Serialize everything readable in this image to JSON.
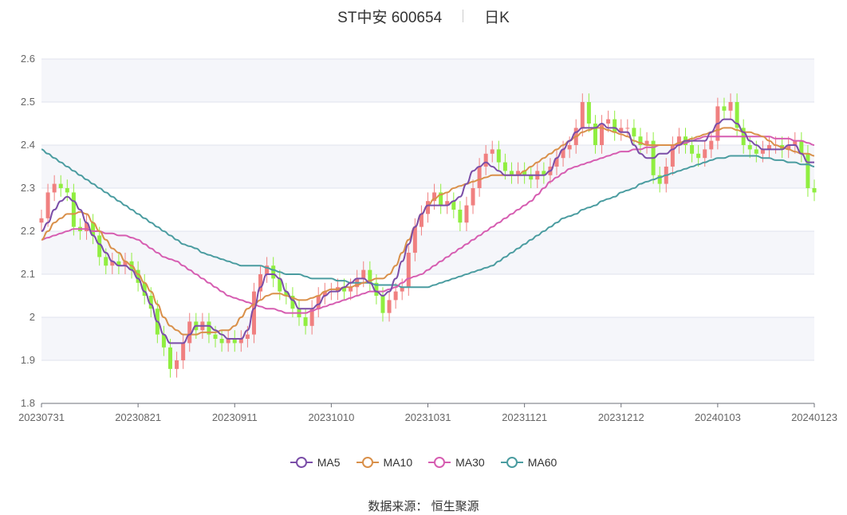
{
  "header": {
    "stock": "ST中安 600654",
    "period": "日K"
  },
  "source": "数据来源：  恒生聚源",
  "colors": {
    "up": "#f08080",
    "down": "#90ee40",
    "ma5": "#7b4ea8",
    "ma10": "#d9904a",
    "ma30": "#d65db1",
    "ma60": "#4a9ca0"
  },
  "chart_data": {
    "type": "candlestick",
    "ylim": [
      1.8,
      2.6
    ],
    "yticks": [
      "1.8",
      "1.9",
      "2",
      "2.1",
      "2.2",
      "2.3",
      "2.4",
      "2.5",
      "2.6"
    ],
    "xticks": [
      {
        "label": "20230731",
        "index": 0
      },
      {
        "label": "20230821",
        "index": 15
      },
      {
        "label": "20230911",
        "index": 30
      },
      {
        "label": "20231010",
        "index": 45
      },
      {
        "label": "20231031",
        "index": 60
      },
      {
        "label": "20231121",
        "index": 75
      },
      {
        "label": "20231212",
        "index": 90
      },
      {
        "label": "20240103",
        "index": 105
      },
      {
        "label": "20240123",
        "index": 120
      }
    ],
    "legend": [
      "MA5",
      "MA10",
      "MA30",
      "MA60"
    ],
    "close": [
      2.23,
      2.29,
      2.31,
      2.3,
      2.29,
      2.21,
      2.2,
      2.22,
      2.19,
      2.14,
      2.12,
      2.13,
      2.12,
      2.13,
      2.11,
      2.08,
      2.05,
      2.02,
      1.96,
      1.93,
      1.88,
      1.9,
      1.94,
      1.99,
      1.97,
      1.99,
      1.96,
      1.95,
      1.94,
      1.95,
      1.94,
      1.95,
      1.96,
      2.06,
      2.1,
      2.12,
      2.09,
      2.06,
      2.05,
      2.02,
      2.0,
      1.98,
      2.02,
      2.05,
      2.06,
      2.06,
      2.07,
      2.06,
      2.07,
      2.09,
      2.11,
      2.08,
      2.05,
      2.01,
      2.04,
      2.06,
      2.07,
      2.15,
      2.21,
      2.24,
      2.27,
      2.29,
      2.26,
      2.27,
      2.25,
      2.22,
      2.26,
      2.3,
      2.35,
      2.38,
      2.39,
      2.36,
      2.34,
      2.33,
      2.34,
      2.33,
      2.32,
      2.34,
      2.33,
      2.35,
      2.37,
      2.39,
      2.4,
      2.44,
      2.5,
      2.45,
      2.4,
      2.45,
      2.46,
      2.43,
      2.44,
      2.44,
      2.42,
      2.4,
      2.41,
      2.33,
      2.31,
      2.35,
      2.4,
      2.42,
      2.4,
      2.38,
      2.37,
      2.39,
      2.41,
      2.49,
      2.48,
      2.5,
      2.44,
      2.4,
      2.39,
      2.38,
      2.39,
      2.4,
      2.4,
      2.39,
      2.4,
      2.41,
      2.38,
      2.3,
      2.29
    ],
    "ma5": [
      2.2,
      2.22,
      2.25,
      2.27,
      2.28,
      2.27,
      2.25,
      2.22,
      2.19,
      2.17,
      2.15,
      2.13,
      2.12,
      2.12,
      2.11,
      2.09,
      2.06,
      2.03,
      1.99,
      1.96,
      1.94,
      1.94,
      1.94,
      1.96,
      1.98,
      1.98,
      1.98,
      1.97,
      1.96,
      1.95,
      1.95,
      1.95,
      1.97,
      2.02,
      2.07,
      2.1,
      2.1,
      2.09,
      2.06,
      2.04,
      2.02,
      2.02,
      2.02,
      2.03,
      2.05,
      2.06,
      2.06,
      2.07,
      2.08,
      2.09,
      2.09,
      2.08,
      2.06,
      2.05,
      2.06,
      2.09,
      2.13,
      2.17,
      2.21,
      2.24,
      2.26,
      2.26,
      2.26,
      2.26,
      2.27,
      2.28,
      2.31,
      2.34,
      2.35,
      2.36,
      2.35,
      2.34,
      2.33,
      2.33,
      2.33,
      2.33,
      2.33,
      2.33,
      2.33,
      2.34,
      2.37,
      2.39,
      2.41,
      2.43,
      2.44,
      2.44,
      2.44,
      2.45,
      2.44,
      2.44,
      2.43,
      2.43,
      2.4,
      2.38,
      2.37,
      2.37,
      2.38,
      2.38,
      2.39,
      2.4,
      2.41,
      2.41,
      2.41,
      2.41,
      2.43,
      2.45,
      2.46,
      2.46,
      2.45,
      2.43,
      2.41,
      2.4,
      2.39,
      2.39,
      2.39,
      2.39,
      2.4,
      2.4,
      2.38,
      2.36,
      2.36
    ],
    "ma10": [
      2.18,
      2.2,
      2.22,
      2.23,
      2.24,
      2.24,
      2.245,
      2.24,
      2.22,
      2.2,
      2.18,
      2.16,
      2.15,
      2.13,
      2.12,
      2.1,
      2.08,
      2.06,
      2.03,
      2.0,
      1.98,
      1.97,
      1.96,
      1.96,
      1.96,
      1.965,
      1.965,
      1.965,
      1.97,
      1.97,
      1.98,
      2.0,
      2.02,
      2.03,
      2.04,
      2.05,
      2.055,
      2.055,
      2.05,
      2.045,
      2.04,
      2.04,
      2.045,
      2.05,
      2.06,
      2.065,
      2.065,
      2.07,
      2.07,
      2.075,
      2.08,
      2.085,
      2.09,
      2.09,
      2.1,
      2.12,
      2.15,
      2.18,
      2.21,
      2.24,
      2.26,
      2.275,
      2.285,
      2.29,
      2.3,
      2.305,
      2.31,
      2.315,
      2.32,
      2.325,
      2.33,
      2.33,
      2.33,
      2.33,
      2.33,
      2.34,
      2.35,
      2.36,
      2.37,
      2.38,
      2.39,
      2.4,
      2.41,
      2.42,
      2.43,
      2.435,
      2.44,
      2.44,
      2.435,
      2.43,
      2.425,
      2.42,
      2.41,
      2.405,
      2.4,
      2.4,
      2.4,
      2.4,
      2.4,
      2.405,
      2.41,
      2.415,
      2.42,
      2.425,
      2.43,
      2.435,
      2.44,
      2.44,
      2.435,
      2.43,
      2.43,
      2.425,
      2.42,
      2.41,
      2.4,
      2.395,
      2.39,
      2.385,
      2.38,
      2.38,
      2.375
    ],
    "ma30": [
      2.18,
      2.185,
      2.19,
      2.195,
      2.2,
      2.205,
      2.205,
      2.205,
      2.2,
      2.2,
      2.195,
      2.195,
      2.19,
      2.19,
      2.185,
      2.18,
      2.17,
      2.16,
      2.15,
      2.14,
      2.135,
      2.13,
      2.12,
      2.11,
      2.1,
      2.09,
      2.08,
      2.07,
      2.06,
      2.05,
      2.045,
      2.04,
      2.035,
      2.03,
      2.025,
      2.02,
      2.02,
      2.015,
      2.01,
      2.01,
      2.01,
      2.01,
      2.015,
      2.02,
      2.025,
      2.03,
      2.035,
      2.04,
      2.045,
      2.05,
      2.055,
      2.06,
      2.06,
      2.06,
      2.065,
      2.07,
      2.08,
      2.09,
      2.095,
      2.1,
      2.11,
      2.12,
      2.13,
      2.14,
      2.15,
      2.16,
      2.17,
      2.18,
      2.19,
      2.2,
      2.21,
      2.22,
      2.23,
      2.24,
      2.25,
      2.26,
      2.27,
      2.285,
      2.3,
      2.315,
      2.325,
      2.335,
      2.345,
      2.35,
      2.355,
      2.36,
      2.365,
      2.37,
      2.375,
      2.38,
      2.385,
      2.385,
      2.39,
      2.39,
      2.395,
      2.395,
      2.4,
      2.4,
      2.4,
      2.4,
      2.405,
      2.41,
      2.415,
      2.42,
      2.42,
      2.42,
      2.42,
      2.42,
      2.42,
      2.42,
      2.42,
      2.42,
      2.42,
      2.42,
      2.415,
      2.415,
      2.415,
      2.41,
      2.41,
      2.405,
      2.4
    ],
    "ma60": [
      2.39,
      2.38,
      2.37,
      2.36,
      2.35,
      2.34,
      2.33,
      2.32,
      2.31,
      2.3,
      2.29,
      2.28,
      2.27,
      2.26,
      2.25,
      2.24,
      2.23,
      2.22,
      2.21,
      2.2,
      2.19,
      2.18,
      2.17,
      2.165,
      2.16,
      2.15,
      2.145,
      2.14,
      2.135,
      2.13,
      2.125,
      2.12,
      2.12,
      2.12,
      2.12,
      2.115,
      2.11,
      2.105,
      2.1,
      2.1,
      2.1,
      2.095,
      2.09,
      2.09,
      2.09,
      2.09,
      2.085,
      2.085,
      2.08,
      2.08,
      2.08,
      2.08,
      2.075,
      2.075,
      2.075,
      2.075,
      2.07,
      2.07,
      2.07,
      2.07,
      2.07,
      2.075,
      2.08,
      2.085,
      2.09,
      2.095,
      2.1,
      2.105,
      2.11,
      2.115,
      2.12,
      2.13,
      2.14,
      2.15,
      2.16,
      2.17,
      2.18,
      2.19,
      2.2,
      2.21,
      2.22,
      2.23,
      2.235,
      2.24,
      2.25,
      2.255,
      2.26,
      2.27,
      2.275,
      2.28,
      2.29,
      2.295,
      2.3,
      2.31,
      2.315,
      2.32,
      2.325,
      2.33,
      2.335,
      2.34,
      2.345,
      2.35,
      2.355,
      2.36,
      2.365,
      2.37,
      2.37,
      2.375,
      2.375,
      2.375,
      2.375,
      2.375,
      2.37,
      2.37,
      2.365,
      2.365,
      2.36,
      2.36,
      2.355,
      2.355,
      2.35
    ]
  }
}
